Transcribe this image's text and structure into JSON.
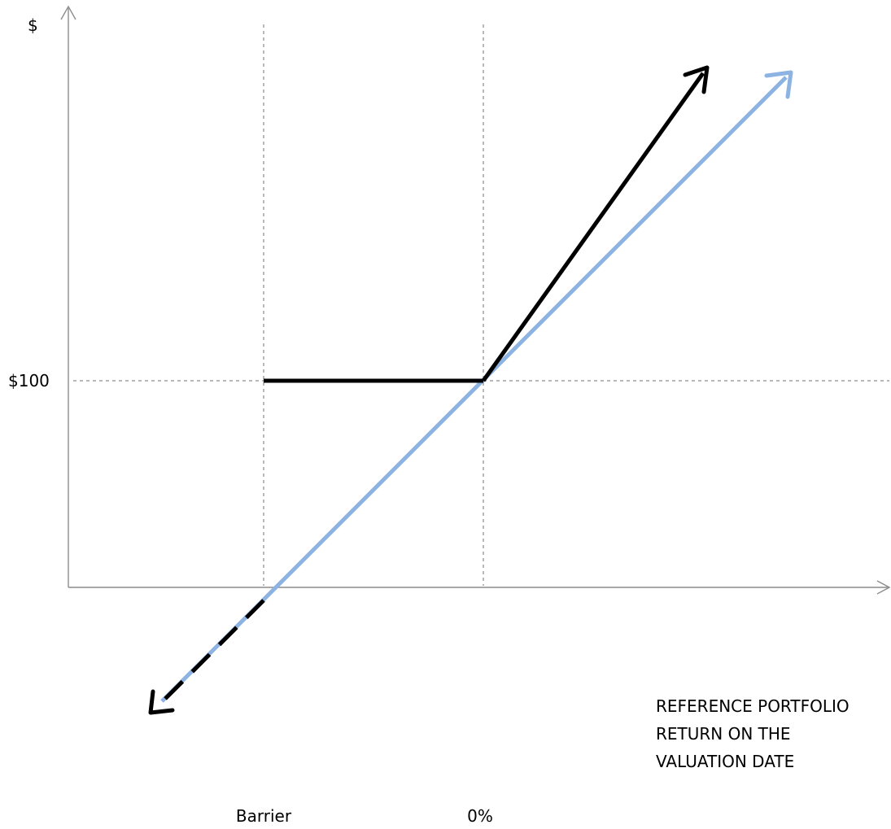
{
  "chart_data": {
    "type": "line",
    "y_axis_label": "$",
    "x_axis_label_lines": [
      "REFERENCE PORTFOLIO",
      "RETURN ON THE",
      "VALUATION DATE"
    ],
    "y_tick_labels": [
      "$100"
    ],
    "x_tick_labels": [
      "Barrier",
      "0%"
    ],
    "series": [
      {
        "color": "#000000",
        "segments": [
          {
            "description_points": [
              [
                "Barrier",
                "$100"
              ],
              [
                "0%",
                "$100"
              ]
            ],
            "style": "solid"
          },
          {
            "description_points": [
              [
                "0%",
                "$100"
              ],
              [
                "up-right",
                "up"
              ]
            ],
            "style": "solid-arrow"
          },
          {
            "description_points": [
              [
                "Barrier",
                "below $100"
              ],
              [
                "down-left",
                "down"
              ]
            ],
            "style": "dashed-arrow"
          }
        ]
      },
      {
        "color": "#8DB3E2",
        "segments": [
          {
            "description_points": [
              [
                "down-left",
                "down"
              ],
              [
                "up-right",
                "up"
              ]
            ],
            "style": "double-arrow"
          }
        ]
      }
    ],
    "reference_lines": {
      "horizontal": [
        "$100"
      ],
      "vertical": [
        "Barrier",
        "0%"
      ]
    },
    "grid": false
  },
  "colors": {
    "axis": "#8c8c8c",
    "guide": "#8c8c8c",
    "payoff": "#000000",
    "underlying": "#8DB3E2"
  }
}
